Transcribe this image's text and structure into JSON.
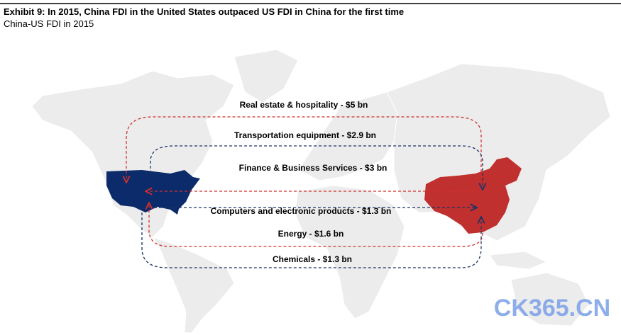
{
  "header": {
    "title": "Exhibit 9: In 2015, China FDI in the United States outpaced US FDI in China for the first time",
    "subtitle": "China-US FDI in 2015"
  },
  "map": {
    "land_color": "#ececec",
    "us_color": "#0b2b6b",
    "china_color": "#c0302e"
  },
  "flows": [
    {
      "label": "Real estate & hospitality - $5 bn",
      "color": "#d0312d"
    },
    {
      "label": "Transportation equipment - $2.9 bn",
      "color": "#1a3366"
    },
    {
      "label": "Finance & Business Services - $3 bn",
      "color": "#d0312d"
    },
    {
      "label": "Computers and electronic products - $1.3 bn",
      "color": "#1a3366"
    },
    {
      "label": "Energy - $1.6 bn",
      "color": "#d0312d"
    },
    {
      "label": "Chemicals - $1.3 bn",
      "color": "#1a3366"
    }
  ],
  "watermark": "CK365.CN"
}
